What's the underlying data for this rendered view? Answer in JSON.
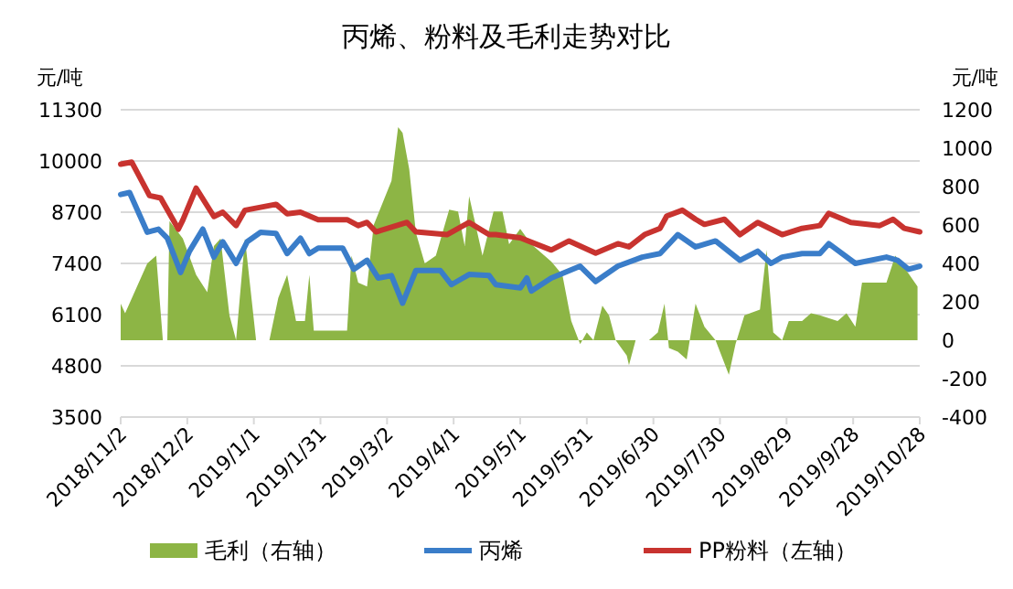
{
  "chart_data": {
    "type": "line",
    "title": "丙烯、粉料及毛利走势对比",
    "ylabel": "元/吨",
    "y2label": "元/吨",
    "xlim": [
      "2018-11-02",
      "2019-10-28"
    ],
    "xticks": [
      {
        "value": "2018-11-02",
        "label": "2018/11/2"
      },
      {
        "value": "2018-12-02",
        "label": "2018/12/2"
      },
      {
        "value": "2019-01-01",
        "label": "2019/1/1"
      },
      {
        "value": "2019-01-31",
        "label": "2019/1/31"
      },
      {
        "value": "2019-03-02",
        "label": "2019/3/2"
      },
      {
        "value": "2019-04-01",
        "label": "2019/4/1"
      },
      {
        "value": "2019-05-01",
        "label": "2019/5/1"
      },
      {
        "value": "2019-05-31",
        "label": "2019/5/31"
      },
      {
        "value": "2019-06-30",
        "label": "2019/6/30"
      },
      {
        "value": "2019-07-30",
        "label": "2019/7/30"
      },
      {
        "value": "2019-08-29",
        "label": "2019/8/29"
      },
      {
        "value": "2019-09-28",
        "label": "2019/9/28"
      },
      {
        "value": "2019-10-28",
        "label": "2019/10/28"
      }
    ],
    "ylim": [
      3500,
      11300
    ],
    "yticks": [
      3500,
      4800,
      6100,
      7400,
      8700,
      10000,
      11300
    ],
    "y2lim": [
      -400,
      1200
    ],
    "y2ticks": [
      -400,
      -200,
      0,
      200,
      400,
      600,
      800,
      1000,
      1200
    ],
    "grid": "y",
    "legend": "bottom",
    "line_style": "solid",
    "marker": "none",
    "series": [
      {
        "name": "毛利（右轴）",
        "type": "area",
        "axis": "y2",
        "color": "#8db545",
        "x": [
          "2018-11-02",
          "2018-11-04",
          "2018-11-14",
          "2018-11-18",
          "2018-11-21",
          "2018-11-23",
          "2018-11-24",
          "2018-11-30",
          "2018-12-06",
          "2018-12-11",
          "2018-12-14",
          "2018-12-17",
          "2018-12-21",
          "2018-12-24",
          "2018-12-28",
          "2019-01-02",
          "2019-01-08",
          "2019-01-12",
          "2019-01-16",
          "2019-01-20",
          "2019-01-24",
          "2019-01-26",
          "2019-01-28",
          "2019-02-12",
          "2019-02-14",
          "2019-02-17",
          "2019-02-21",
          "2019-02-24",
          "2019-03-04",
          "2019-03-07",
          "2019-03-09",
          "2019-03-12",
          "2019-03-15",
          "2019-03-19",
          "2019-03-24",
          "2019-03-30",
          "2019-04-03",
          "2019-04-06",
          "2019-04-08",
          "2019-04-14",
          "2019-04-19",
          "2019-04-23",
          "2019-04-26",
          "2019-05-01",
          "2019-05-06",
          "2019-05-15",
          "2019-05-20",
          "2019-05-24",
          "2019-05-28",
          "2019-05-31",
          "2019-06-03",
          "2019-06-07",
          "2019-06-10",
          "2019-06-13",
          "2019-06-18",
          "2019-06-19",
          "2019-06-22",
          "2019-06-28",
          "2019-07-02",
          "2019-07-05",
          "2019-07-07",
          "2019-07-11",
          "2019-07-15",
          "2019-07-19",
          "2019-07-23",
          "2019-07-28",
          "2019-08-03",
          "2019-08-06",
          "2019-08-10",
          "2019-08-17",
          "2019-08-20",
          "2019-08-23",
          "2019-08-27",
          "2019-08-30",
          "2019-09-05",
          "2019-09-09",
          "2019-09-13",
          "2019-09-21",
          "2019-09-25",
          "2019-09-29",
          "2019-10-02",
          "2019-10-13",
          "2019-10-17",
          "2019-10-21",
          "2019-10-27"
        ],
        "values": [
          190,
          140,
          400,
          440,
          0,
          0,
          620,
          530,
          340,
          250,
          490,
          530,
          130,
          0,
          530,
          0,
          0,
          220,
          340,
          100,
          100,
          340,
          50,
          50,
          440,
          300,
          280,
          600,
          830,
          1110,
          1080,
          890,
          560,
          400,
          440,
          680,
          670,
          490,
          750,
          440,
          670,
          670,
          500,
          580,
          500,
          410,
          340,
          100,
          -20,
          40,
          0,
          180,
          130,
          0,
          -80,
          -130,
          0,
          0,
          40,
          190,
          -40,
          -60,
          -100,
          190,
          70,
          0,
          -180,
          -20,
          130,
          160,
          470,
          40,
          0,
          100,
          100,
          140,
          130,
          100,
          140,
          70,
          300,
          300,
          440,
          380,
          280
        ]
      },
      {
        "name": "丙烯",
        "color": "#3a7dc9",
        "x": [
          "2018-11-02",
          "2018-11-06",
          "2018-11-14",
          "2018-11-19",
          "2018-11-23",
          "2018-11-29",
          "2018-12-03",
          "2018-12-09",
          "2018-12-14",
          "2018-12-18",
          "2018-12-24",
          "2018-12-29",
          "2019-01-04",
          "2019-01-11",
          "2019-01-16",
          "2019-01-22",
          "2019-01-26",
          "2019-01-30",
          "2019-02-10",
          "2019-02-15",
          "2019-02-21",
          "2019-02-26",
          "2019-03-04",
          "2019-03-09",
          "2019-03-15",
          "2019-03-26",
          "2019-03-31",
          "2019-04-08",
          "2019-04-17",
          "2019-04-20",
          "2019-05-01",
          "2019-05-04",
          "2019-05-06",
          "2019-05-15",
          "2019-05-28",
          "2019-06-04",
          "2019-06-14",
          "2019-06-25",
          "2019-07-03",
          "2019-07-11",
          "2019-07-19",
          "2019-07-28",
          "2019-08-08",
          "2019-08-16",
          "2019-08-22",
          "2019-08-27",
          "2019-09-05",
          "2019-09-13",
          "2019-09-17",
          "2019-09-29",
          "2019-10-13",
          "2019-10-18",
          "2019-10-23",
          "2019-10-28"
        ],
        "values": [
          9150,
          9200,
          8190,
          8270,
          8040,
          7170,
          7710,
          8270,
          7560,
          7950,
          7400,
          7950,
          8190,
          8160,
          7650,
          8040,
          7650,
          7790,
          7790,
          7250,
          7480,
          7030,
          7090,
          6390,
          7220,
          7220,
          6860,
          7120,
          7090,
          6860,
          6780,
          7030,
          6700,
          7030,
          7330,
          6940,
          7330,
          7560,
          7650,
          8130,
          7820,
          7970,
          7480,
          7710,
          7400,
          7560,
          7650,
          7650,
          7900,
          7400,
          7560,
          7480,
          7250,
          7330
        ]
      },
      {
        "name": "PP粉料（左轴）",
        "color": "#c8332f",
        "x": [
          "2018-11-02",
          "2018-11-07",
          "2018-11-15",
          "2018-11-20",
          "2018-11-28",
          "2018-11-30",
          "2018-12-06",
          "2018-12-14",
          "2018-12-18",
          "2018-12-24",
          "2018-12-28",
          "2019-01-11",
          "2019-01-16",
          "2019-01-22",
          "2019-01-30",
          "2019-02-12",
          "2019-02-17",
          "2019-02-21",
          "2019-02-25",
          "2019-03-11",
          "2019-03-15",
          "2019-03-29",
          "2019-04-08",
          "2019-04-17",
          "2019-04-20",
          "2019-05-01",
          "2019-05-15",
          "2019-05-23",
          "2019-06-04",
          "2019-06-14",
          "2019-06-19",
          "2019-06-26",
          "2019-07-03",
          "2019-07-06",
          "2019-07-13",
          "2019-07-19",
          "2019-07-23",
          "2019-08-01",
          "2019-08-08",
          "2019-08-16",
          "2019-08-27",
          "2019-09-05",
          "2019-09-13",
          "2019-09-17",
          "2019-09-27",
          "2019-10-10",
          "2019-10-16",
          "2019-10-21",
          "2019-10-28"
        ],
        "values": [
          9920,
          9970,
          9120,
          9060,
          8270,
          8500,
          9310,
          8590,
          8700,
          8360,
          8750,
          8900,
          8660,
          8700,
          8510,
          8510,
          8360,
          8440,
          8200,
          8440,
          8200,
          8130,
          8440,
          8130,
          8130,
          8050,
          7740,
          7970,
          7660,
          7900,
          7820,
          8130,
          8290,
          8600,
          8750,
          8520,
          8390,
          8520,
          8130,
          8440,
          8130,
          8290,
          8360,
          8670,
          8440,
          8360,
          8520,
          8290,
          8200
        ]
      }
    ]
  }
}
